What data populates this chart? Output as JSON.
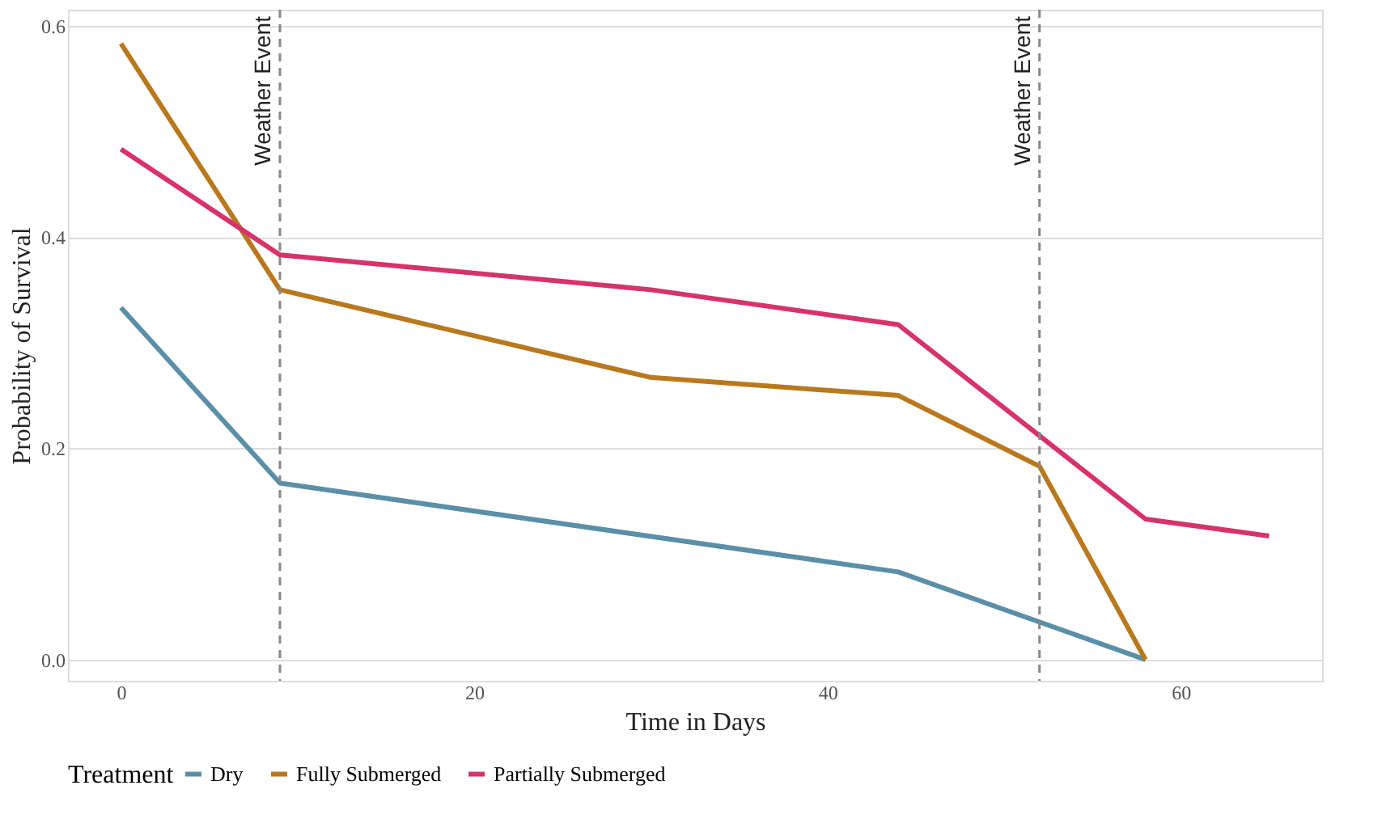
{
  "chart_data": {
    "type": "line",
    "xlabel": "Time in Days",
    "ylabel": "Probability of Survival",
    "legend_title": "Treatment",
    "legend": "bottom",
    "grid": "y",
    "line_style": "solid",
    "marker": "none",
    "xlim": [
      -3,
      68
    ],
    "xticks": [
      0,
      20,
      40,
      60
    ],
    "ylim": [
      -0.02,
      0.615
    ],
    "yticks": [
      {
        "value": 0,
        "label": "0.0"
      },
      {
        "value": 0.2,
        "label": "0.2"
      },
      {
        "value": 0.4,
        "label": "0.4"
      },
      {
        "value": 0.6,
        "label": "0.6"
      }
    ],
    "series": [
      {
        "name": "Dry",
        "color": "#5b8fa8",
        "x": [
          0,
          9,
          44,
          58
        ],
        "values": [
          0.333,
          0.167,
          0.083,
          0
        ]
      },
      {
        "name": "Fully Submerged",
        "color": "#b8791e",
        "x": [
          0,
          9,
          30,
          44,
          52,
          58
        ],
        "values": [
          0.583,
          0.35,
          0.267,
          0.25,
          0.183,
          0
        ]
      },
      {
        "name": "Partially Submerged",
        "color": "#d6336c",
        "x": [
          0,
          9,
          30,
          44,
          58,
          65
        ],
        "values": [
          0.483,
          0.383,
          0.35,
          0.317,
          0.133,
          0.117
        ]
      }
    ],
    "ref_lines": [
      {
        "axis": "x",
        "value": 9,
        "label": "Weather Event",
        "color": "#888888",
        "line_style": "dashed"
      },
      {
        "axis": "x",
        "value": 52,
        "label": "Weather Event",
        "color": "#888888",
        "line_style": "dashed"
      }
    ]
  }
}
